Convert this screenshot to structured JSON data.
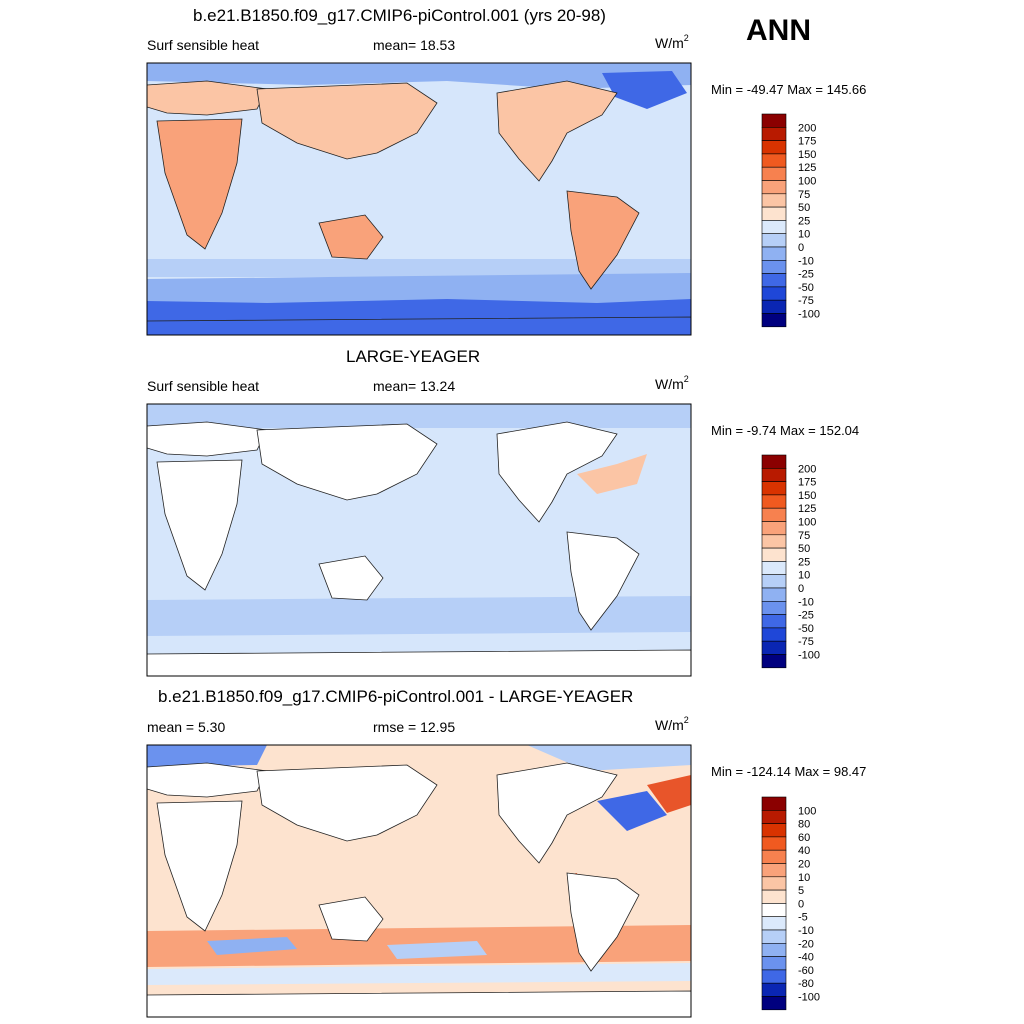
{
  "season": "ANN",
  "panels": [
    {
      "title": "b.e21.B1850.f09_g17.CMIP6-piControl.001 (yrs 20-98)",
      "left_text": "Surf sensible heat",
      "center_text": "mean=  18.53",
      "units_base": "W/m",
      "units_exp": "2",
      "minmax": "Min = -49.47 Max = 145.66",
      "colorbar_labels": [
        "200",
        "175",
        "150",
        "125",
        "100",
        "75",
        "50",
        "25",
        "10",
        "0",
        "-10",
        "-25",
        "-50",
        "-75",
        "-100"
      ],
      "colorbar_colors": [
        "#8b0000",
        "#b81a00",
        "#d93300",
        "#f05a20",
        "#f7814f",
        "#f9a27a",
        "#fbc5a5",
        "#fde3cf",
        "#dbe9fb",
        "#b6cff7",
        "#8fb1f2",
        "#6b92ee",
        "#3f68e6",
        "#1f47d8",
        "#0a26b3",
        "#00007f"
      ]
    },
    {
      "title": "LARGE-YEAGER",
      "left_text": "Surf sensible heat",
      "center_text": "mean=  13.24",
      "units_base": "W/m",
      "units_exp": "2",
      "minmax": "Min =  -9.74 Max = 152.04",
      "colorbar_labels": [
        "200",
        "175",
        "150",
        "125",
        "100",
        "75",
        "50",
        "25",
        "10",
        "0",
        "-10",
        "-25",
        "-50",
        "-75",
        "-100"
      ],
      "colorbar_colors": [
        "#8b0000",
        "#b81a00",
        "#d93300",
        "#f05a20",
        "#f7814f",
        "#f9a27a",
        "#fbc5a5",
        "#fde3cf",
        "#dbe9fb",
        "#b6cff7",
        "#8fb1f2",
        "#6b92ee",
        "#3f68e6",
        "#1f47d8",
        "#0a26b3",
        "#00007f"
      ]
    },
    {
      "title": "b.e21.B1850.f09_g17.CMIP6-piControl.001 - LARGE-YEAGER",
      "left_text": "mean =   5.30",
      "center_text": "rmse =  12.95",
      "units_base": "W/m",
      "units_exp": "2",
      "minmax": "Min = -124.14 Max =  98.47",
      "colorbar_labels": [
        "100",
        "80",
        "60",
        "40",
        "20",
        "10",
        "5",
        "0",
        "-5",
        "-10",
        "-20",
        "-40",
        "-60",
        "-80",
        "-100"
      ],
      "colorbar_colors": [
        "#8b0000",
        "#b81a00",
        "#d93300",
        "#f05a20",
        "#f7814f",
        "#f9a27a",
        "#fbc5a5",
        "#fde3cf",
        "#ffffff",
        "#dbe9fb",
        "#b6cff7",
        "#8fb1f2",
        "#6b92ee",
        "#3f68e6",
        "#0a26b3",
        "#00007f"
      ]
    }
  ],
  "field_colors": {
    "ocean_light": "#d6e6fb",
    "ocean_mid": "#b6cff7",
    "ocean_cold": "#8fb1f2",
    "polar": "#3f68e6",
    "land_warm": "#f9c4a5",
    "land_hot": "#f7a27a",
    "diff_ocean": "#fde3cf",
    "diff_warm": "#f9a27a",
    "diff_hot": "#e8552a",
    "diff_cold": "#8fb1f2"
  }
}
